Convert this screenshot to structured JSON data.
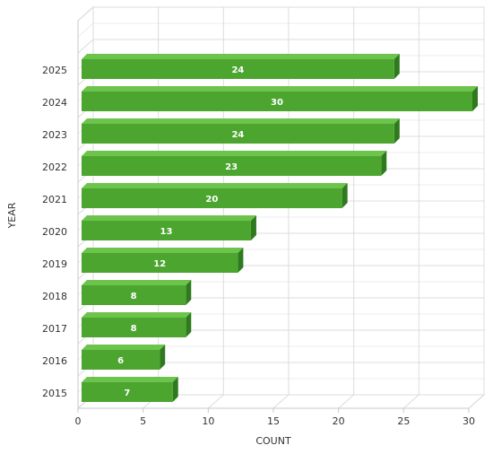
{
  "chart_data": {
    "type": "bar",
    "orientation": "horizontal",
    "categories": [
      "2015",
      "2016",
      "2017",
      "2018",
      "2019",
      "2020",
      "2021",
      "2022",
      "2023",
      "2024",
      "2025",
      null
    ],
    "values": [
      7,
      6,
      8,
      8,
      12,
      13,
      20,
      23,
      24,
      30,
      24,
      null
    ],
    "color": "#4ba52f",
    "xlim": [
      0,
      30
    ],
    "xticks": [
      0,
      5,
      10,
      15,
      20,
      25,
      30
    ],
    "x_label": "COUNT",
    "y_label": "YEAR",
    "grid": true
  }
}
